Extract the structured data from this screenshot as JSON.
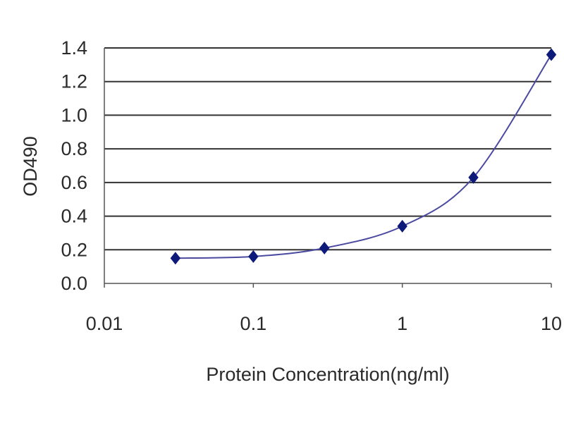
{
  "chart_data": {
    "type": "line",
    "xscale": "log",
    "xlabel": "Protein Concentration(ng/ml)",
    "ylabel": "OD490",
    "xlim": [
      0.01,
      10
    ],
    "ylim": [
      0,
      1.4
    ],
    "xticks": [
      "0.01",
      "0.1",
      "1",
      "10"
    ],
    "yticks": [
      "0.0",
      "0.2",
      "0.4",
      "0.6",
      "0.8",
      "1.0",
      "1.2",
      "1.4"
    ],
    "grid": "horizontal",
    "legend": "none",
    "series": [
      {
        "x": [
          0.03,
          0.1,
          0.3,
          1,
          3,
          10
        ],
        "y": [
          0.15,
          0.16,
          0.21,
          0.34,
          0.63,
          1.36
        ]
      }
    ],
    "colors": {
      "line": "#4a4aa0",
      "marker": "#0d1a7a",
      "grid": "#333333",
      "axis": "#555555"
    }
  }
}
